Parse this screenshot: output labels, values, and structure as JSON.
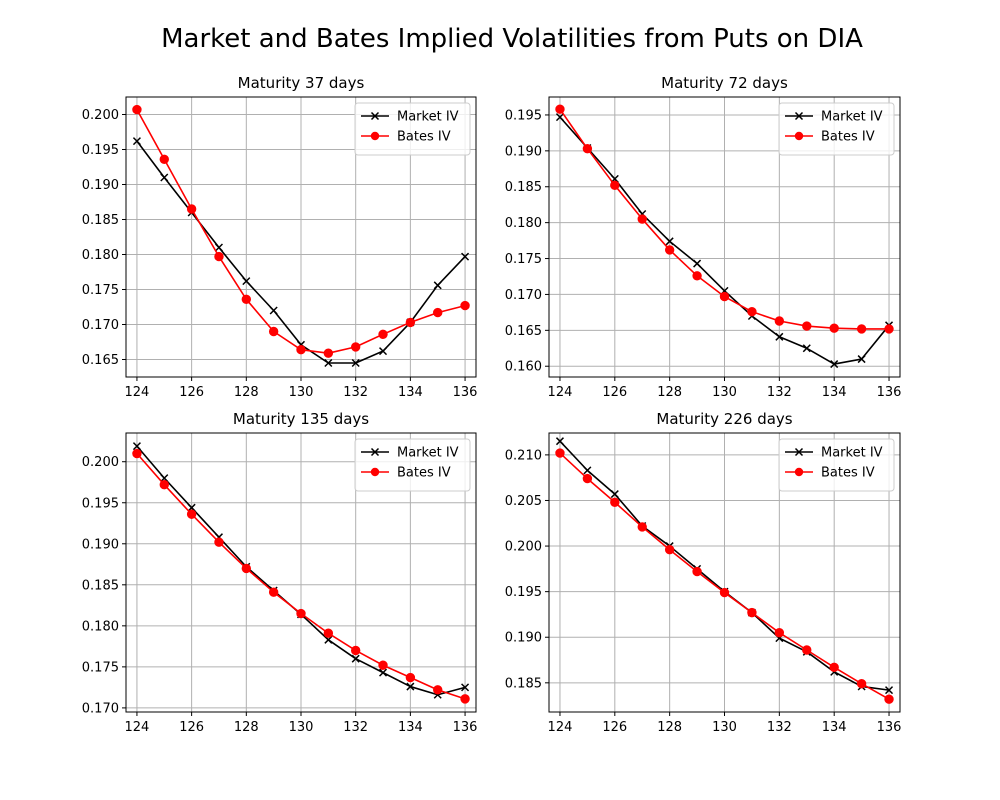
{
  "figure": {
    "title": "Market and Bates Implied Volatilities from Puts on DIA"
  },
  "chart_data": [
    {
      "type": "line",
      "title": "Maturity 37 days",
      "x": [
        124,
        125,
        126,
        127,
        128,
        129,
        130,
        131,
        132,
        133,
        134,
        135,
        136
      ],
      "xticks": [
        124,
        126,
        128,
        130,
        132,
        134,
        136
      ],
      "xlim": [
        123.6,
        136.4
      ],
      "yticks": [
        0.165,
        0.17,
        0.175,
        0.18,
        0.185,
        0.19,
        0.195,
        0.2
      ],
      "ylim": [
        0.1625,
        0.2025
      ],
      "grid": true,
      "legend": "upper-right",
      "series": [
        {
          "name": "Market IV",
          "color": "#000000",
          "marker": "x",
          "values": [
            0.1962,
            0.191,
            0.186,
            0.181,
            0.1762,
            0.172,
            0.1671,
            0.1645,
            0.1645,
            0.1662,
            0.1703,
            0.1756,
            0.1797
          ]
        },
        {
          "name": "Bates IV",
          "color": "#ff0000",
          "marker": "o",
          "values": [
            0.2007,
            0.1936,
            0.1865,
            0.1797,
            0.1736,
            0.169,
            0.1664,
            0.1659,
            0.1668,
            0.1686,
            0.1703,
            0.1717,
            0.1727
          ]
        }
      ]
    },
    {
      "type": "line",
      "title": "Maturity 72 days",
      "x": [
        124,
        125,
        126,
        127,
        128,
        129,
        130,
        131,
        132,
        133,
        134,
        135,
        136
      ],
      "xticks": [
        124,
        126,
        128,
        130,
        132,
        134,
        136
      ],
      "xlim": [
        123.6,
        136.4
      ],
      "yticks": [
        0.16,
        0.165,
        0.17,
        0.175,
        0.18,
        0.185,
        0.19,
        0.195
      ],
      "ylim": [
        0.1585,
        0.1975
      ],
      "grid": true,
      "legend": "upper-right",
      "series": [
        {
          "name": "Market IV",
          "color": "#000000",
          "marker": "x",
          "values": [
            0.1947,
            0.1904,
            0.1861,
            0.1812,
            0.1774,
            0.1743,
            0.1705,
            0.167,
            0.1641,
            0.1625,
            0.1603,
            0.161,
            0.1657
          ]
        },
        {
          "name": "Bates IV",
          "color": "#ff0000",
          "marker": "o",
          "values": [
            0.1958,
            0.1903,
            0.1852,
            0.1805,
            0.1762,
            0.1726,
            0.1697,
            0.1676,
            0.1663,
            0.1656,
            0.1653,
            0.1652,
            0.1652
          ]
        }
      ]
    },
    {
      "type": "line",
      "title": "Maturity 135 days",
      "x": [
        124,
        125,
        126,
        127,
        128,
        129,
        130,
        131,
        132,
        133,
        134,
        135,
        136
      ],
      "xticks": [
        124,
        126,
        128,
        130,
        132,
        134,
        136
      ],
      "xlim": [
        123.6,
        136.4
      ],
      "yticks": [
        0.17,
        0.175,
        0.18,
        0.185,
        0.19,
        0.195,
        0.2
      ],
      "ylim": [
        0.1695,
        0.2035
      ],
      "grid": true,
      "legend": "upper-right",
      "series": [
        {
          "name": "Market IV",
          "color": "#000000",
          "marker": "x",
          "values": [
            0.2019,
            0.198,
            0.1944,
            0.1908,
            0.1872,
            0.1843,
            0.1814,
            0.1783,
            0.176,
            0.1743,
            0.1726,
            0.1716,
            0.1725
          ]
        },
        {
          "name": "Bates IV",
          "color": "#ff0000",
          "marker": "o",
          "values": [
            0.201,
            0.1972,
            0.1936,
            0.1902,
            0.187,
            0.1841,
            0.1815,
            0.1791,
            0.177,
            0.1752,
            0.1737,
            0.1722,
            0.1711
          ]
        }
      ]
    },
    {
      "type": "line",
      "title": "Maturity 226 days",
      "x": [
        124,
        125,
        126,
        127,
        128,
        129,
        130,
        131,
        132,
        133,
        134,
        135,
        136
      ],
      "xticks": [
        124,
        126,
        128,
        130,
        132,
        134,
        136
      ],
      "xlim": [
        123.6,
        136.4
      ],
      "yticks": [
        0.185,
        0.19,
        0.195,
        0.2,
        0.205,
        0.21
      ],
      "ylim": [
        0.1818,
        0.2124
      ],
      "grid": true,
      "legend": "upper-right",
      "series": [
        {
          "name": "Market IV",
          "color": "#000000",
          "marker": "x",
          "values": [
            0.2115,
            0.2083,
            0.2057,
            0.2022,
            0.2,
            0.1975,
            0.195,
            0.1927,
            0.1899,
            0.1884,
            0.1862,
            0.1846,
            0.1842
          ]
        },
        {
          "name": "Bates IV",
          "color": "#ff0000",
          "marker": "o",
          "values": [
            0.2102,
            0.2074,
            0.2048,
            0.2021,
            0.1996,
            0.1972,
            0.1949,
            0.1927,
            0.1905,
            0.1886,
            0.1867,
            0.1849,
            0.1832
          ]
        }
      ]
    }
  ]
}
